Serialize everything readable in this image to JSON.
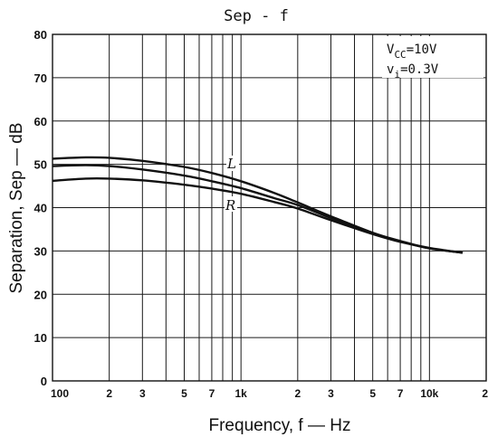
{
  "chart_data": {
    "type": "line",
    "title": "Sep - f",
    "xlabel": "Frequency, f — Hz",
    "ylabel": "Separation, Sep — dB",
    "x_scale": "log",
    "xlim": [
      100,
      20000
    ],
    "ylim": [
      0,
      80
    ],
    "yticks": [
      0,
      10,
      20,
      30,
      40,
      50,
      60,
      70,
      80
    ],
    "xticks": [
      {
        "value": 100,
        "label": "100"
      },
      {
        "value": 200,
        "label": "2"
      },
      {
        "value": 300,
        "label": "3"
      },
      {
        "value": 500,
        "label": "5"
      },
      {
        "value": 700,
        "label": "7"
      },
      {
        "value": 1000,
        "label": "1k"
      },
      {
        "value": 2000,
        "label": "2"
      },
      {
        "value": 3000,
        "label": "3"
      },
      {
        "value": 5000,
        "label": "5"
      },
      {
        "value": 7000,
        "label": "7"
      },
      {
        "value": 10000,
        "label": "10k"
      },
      {
        "value": 20000,
        "label": "2"
      }
    ],
    "x_gridlines": [
      100,
      200,
      300,
      400,
      500,
      600,
      700,
      800,
      900,
      1000,
      2000,
      3000,
      4000,
      5000,
      6000,
      7000,
      8000,
      9000,
      10000,
      20000
    ],
    "y_gridlines": [
      0,
      10,
      20,
      30,
      40,
      50,
      60,
      70,
      80
    ],
    "grid": true,
    "conditions": [
      {
        "main": "V",
        "sub": "CC",
        "rest": "=10V"
      },
      {
        "main": "v",
        "sub": "i",
        "rest": "=0.3V"
      }
    ],
    "series": [
      {
        "name": "L",
        "x": [
          100,
          150,
          200,
          300,
          500,
          700,
          1000,
          1500,
          2000,
          3000,
          5000,
          7000,
          10000,
          15000
        ],
        "y": [
          51.3,
          51.6,
          51.5,
          50.8,
          49.4,
          48.0,
          46.1,
          43.4,
          41.2,
          38.0,
          34.2,
          32.3,
          30.6,
          29.6
        ]
      },
      {
        "name": "",
        "x": [
          100,
          150,
          200,
          300,
          500,
          700,
          1000,
          1500,
          2000,
          3000,
          5000,
          7000,
          10000,
          15000
        ],
        "y": [
          49.6,
          49.8,
          49.6,
          48.8,
          47.4,
          46.1,
          44.5,
          42.2,
          40.6,
          37.6,
          34.0,
          32.2,
          30.6,
          29.6
        ]
      },
      {
        "name": "R",
        "x": [
          100,
          150,
          200,
          300,
          500,
          700,
          1000,
          1500,
          2000,
          3000,
          5000,
          7000,
          10000,
          15000
        ],
        "y": [
          46.2,
          46.7,
          46.7,
          46.3,
          45.3,
          44.4,
          43.2,
          41.3,
          39.8,
          37.1,
          33.9,
          32.1,
          30.7,
          29.6
        ]
      }
    ]
  }
}
